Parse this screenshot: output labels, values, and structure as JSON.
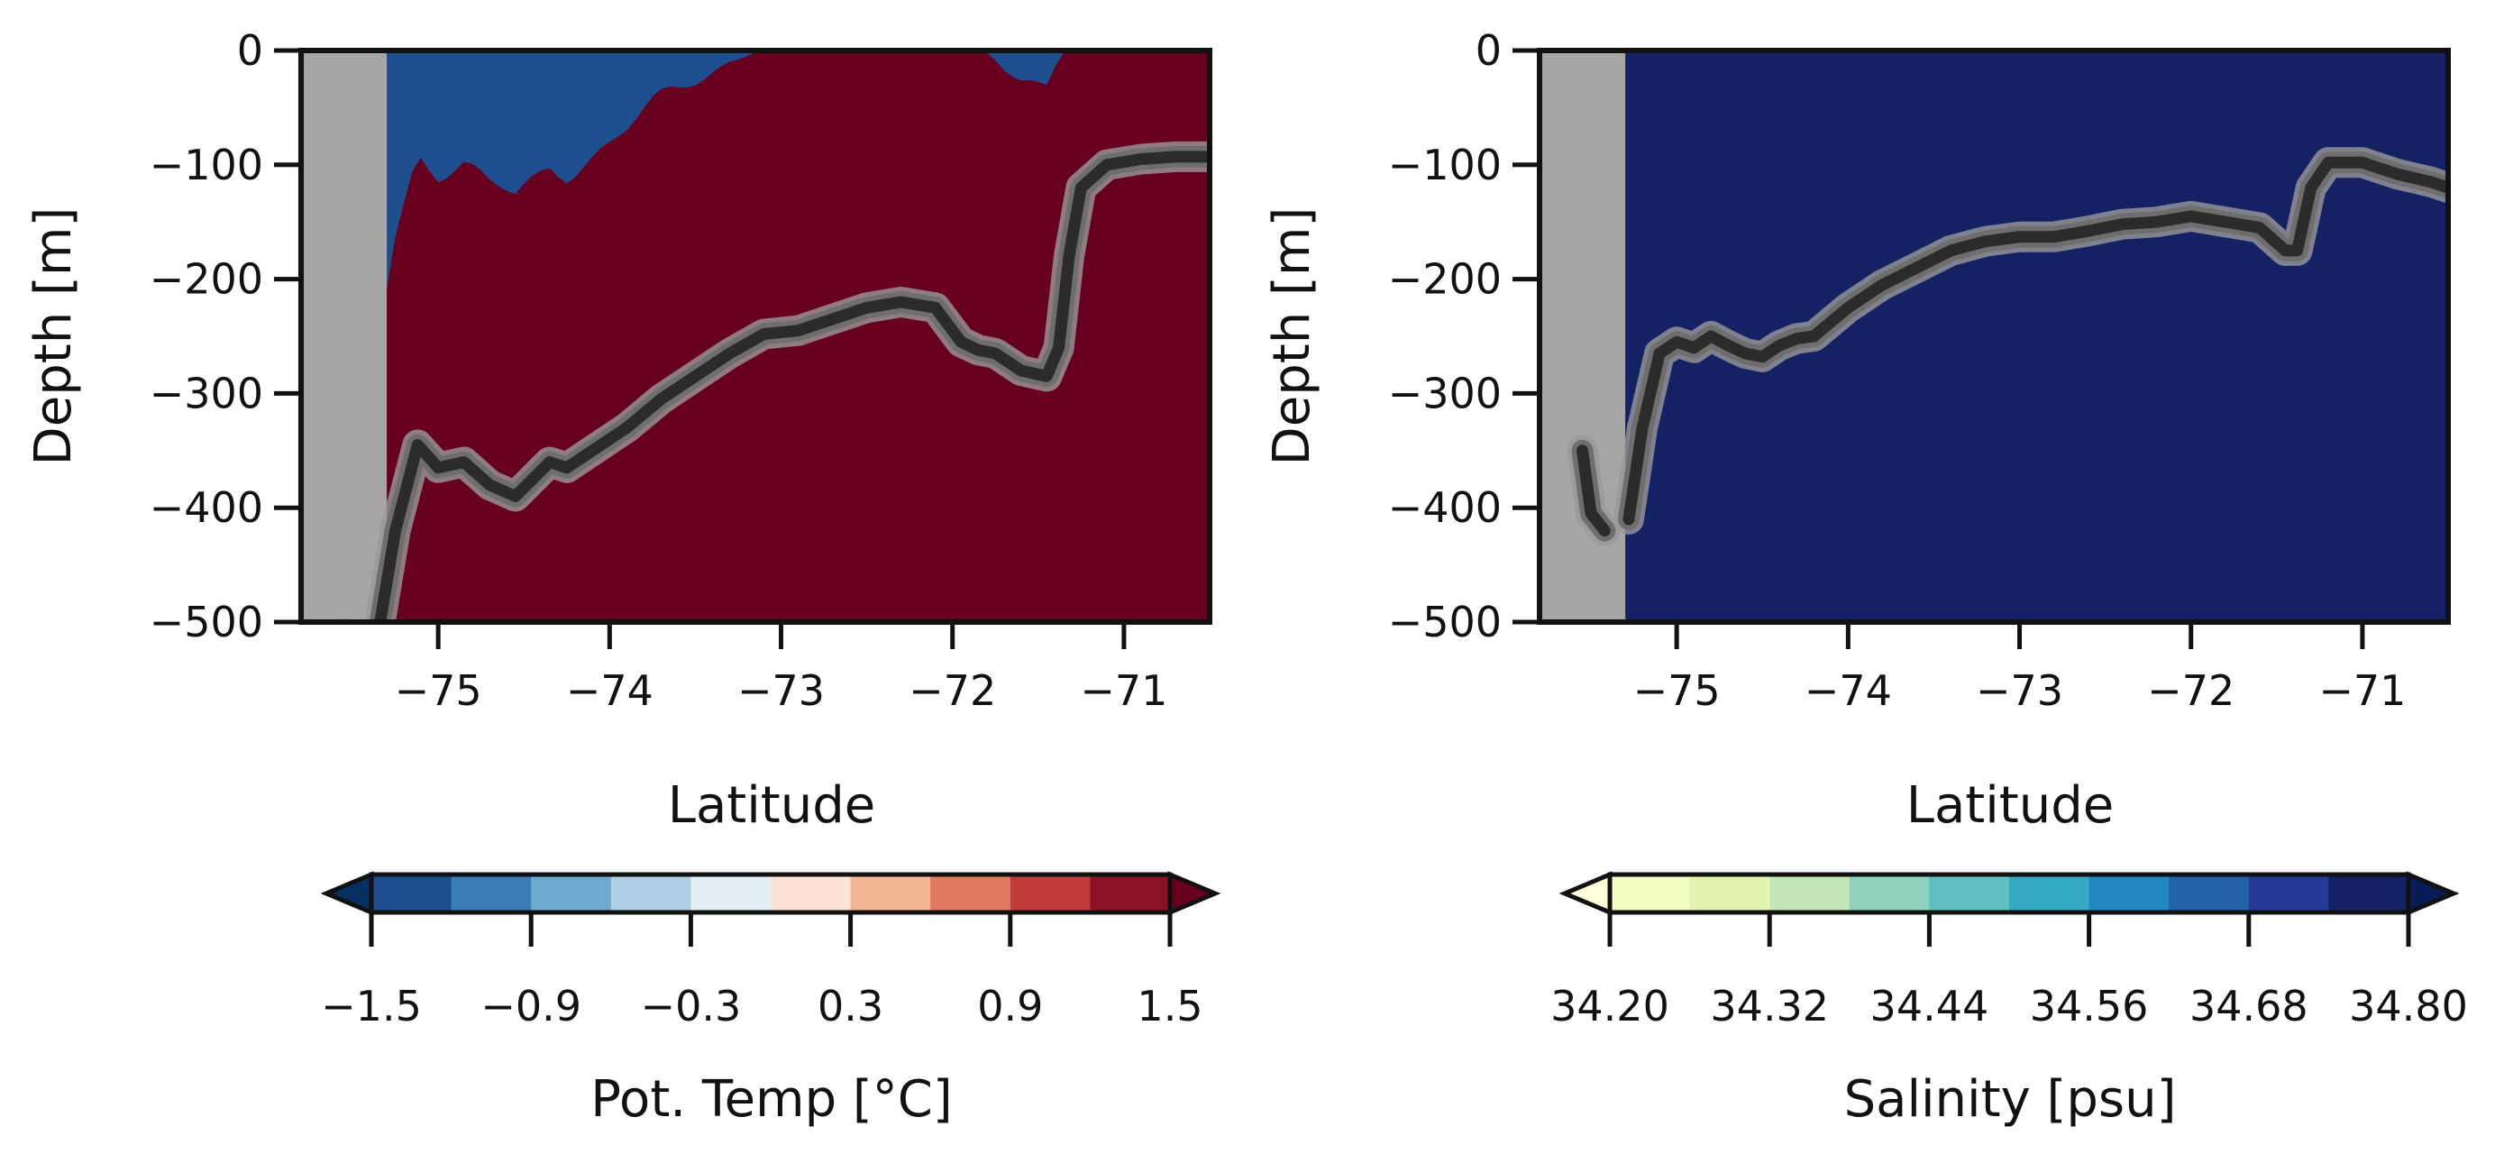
{
  "chart_data": [
    {
      "type": "contourf",
      "xlabel": "Latitude",
      "ylabel": "Depth [m]",
      "xlim": [
        -75.8,
        -70.5
      ],
      "ylim": [
        -500,
        0
      ],
      "xticks": [
        -75,
        -74,
        -73,
        -72,
        -71
      ],
      "xtick_labels": [
        "−75",
        "−74",
        "−73",
        "−72",
        "−71"
      ],
      "yticks": [
        0,
        -100,
        -200,
        -300,
        -400,
        -500
      ],
      "ytick_labels": [
        "0",
        "−100",
        "−200",
        "−300",
        "−400",
        "−500"
      ],
      "colorbar": {
        "label": "Pot. Temp [°C]",
        "levels": [
          -1.5,
          -1.2,
          -0.9,
          -0.6,
          -0.3,
          0.0,
          0.3,
          0.6,
          0.9,
          1.2,
          1.5
        ],
        "tick_values": [
          -1.5,
          -0.9,
          -0.3,
          0.3,
          0.9,
          1.5
        ],
        "tick_labels": [
          "−1.5",
          "−0.9",
          "−0.3",
          "0.3",
          "0.9",
          "1.5"
        ],
        "extend": "both",
        "under_color": "#053061",
        "over_color": "#67001f",
        "colors": [
          "#1d4f8f",
          "#3a7eb8",
          "#6ea9d0",
          "#aed0e6",
          "#e4eef5",
          "#fbe3d6",
          "#f5b597",
          "#e07a61",
          "#c23b3b",
          "#8c1228"
        ]
      },
      "interface_line": {
        "lat": [
          -75.55,
          -75.45,
          -75.35,
          -75.25,
          -75.12,
          -75.0,
          -74.85,
          -74.7,
          -74.55,
          -74.45,
          -74.35,
          -74.25,
          -74.1,
          -73.9,
          -73.7,
          -73.5,
          -73.3,
          -73.1,
          -72.9,
          -72.7,
          -72.5,
          -72.3,
          -72.1,
          -71.95,
          -71.85,
          -71.75,
          -71.6,
          -71.45,
          -71.38,
          -71.32,
          -71.25,
          -71.1,
          -70.9,
          -70.7,
          -70.5
        ],
        "depth": [
          -510,
          -520,
          -510,
          -420,
          -345,
          -365,
          -360,
          -380,
          -390,
          -375,
          -360,
          -365,
          -350,
          -330,
          -305,
          -285,
          -265,
          -248,
          -245,
          -235,
          -225,
          -220,
          -225,
          -255,
          -262,
          -265,
          -280,
          -285,
          -260,
          -180,
          -120,
          -100,
          -95,
          -93,
          -93
        ]
      },
      "land_mask_lat_max": -75.3
    },
    {
      "type": "contourf",
      "xlabel": "Latitude",
      "ylabel": "Depth [m]",
      "xlim": [
        -75.8,
        -70.5
      ],
      "ylim": [
        -500,
        0
      ],
      "xticks": [
        -75,
        -74,
        -73,
        -72,
        -71
      ],
      "xtick_labels": [
        "−75",
        "−74",
        "−73",
        "−72",
        "−71"
      ],
      "yticks": [
        0,
        -100,
        -200,
        -300,
        -400,
        -500
      ],
      "ytick_labels": [
        "0",
        "−100",
        "−200",
        "−300",
        "−400",
        "−500"
      ],
      "colorbar": {
        "label": "Salinity [psu]",
        "levels": [
          34.2,
          34.26,
          34.32,
          34.38,
          34.44,
          34.5,
          34.56,
          34.62,
          34.68,
          34.74,
          34.8
        ],
        "tick_values": [
          34.2,
          34.32,
          34.44,
          34.56,
          34.68,
          34.8
        ],
        "tick_labels": [
          "34.20",
          "34.32",
          "34.44",
          "34.56",
          "34.68",
          "34.80"
        ],
        "extend": "both",
        "under_color": "#ffffd9",
        "over_color": "#081d58",
        "colors": [
          "#f5fbc5",
          "#e3f4b1",
          "#c2e6b5",
          "#8fd2bb",
          "#5ebec0",
          "#35a8c2",
          "#2088bd",
          "#2462a8",
          "#253a94",
          "#142264"
        ]
      },
      "interface_line": {
        "lat": [
          -75.55,
          -75.5,
          -75.42,
          -75.35,
          -75.28,
          -75.2,
          -75.1,
          -75.0,
          -74.9,
          -74.8,
          -74.7,
          -74.6,
          -74.5,
          -74.4,
          -74.3,
          -74.2,
          -74.0,
          -73.8,
          -73.6,
          -73.4,
          -73.2,
          -73.0,
          -72.8,
          -72.6,
          -72.4,
          -72.2,
          -72.0,
          -71.8,
          -71.6,
          -71.45,
          -71.38,
          -71.3,
          -71.2,
          -71.0,
          -70.8,
          -70.6,
          -70.5
        ],
        "depth": [
          -350,
          -405,
          -420,
          null,
          -410,
          -330,
          -265,
          -255,
          -260,
          -250,
          -258,
          -265,
          -268,
          -258,
          -252,
          -250,
          -225,
          -205,
          -190,
          -175,
          -167,
          -163,
          -163,
          -158,
          -152,
          -150,
          -145,
          -150,
          -155,
          -175,
          -175,
          -120,
          -98,
          -98,
          -108,
          -115,
          -120
        ]
      },
      "land_mask_lat_max": -75.3
    }
  ]
}
